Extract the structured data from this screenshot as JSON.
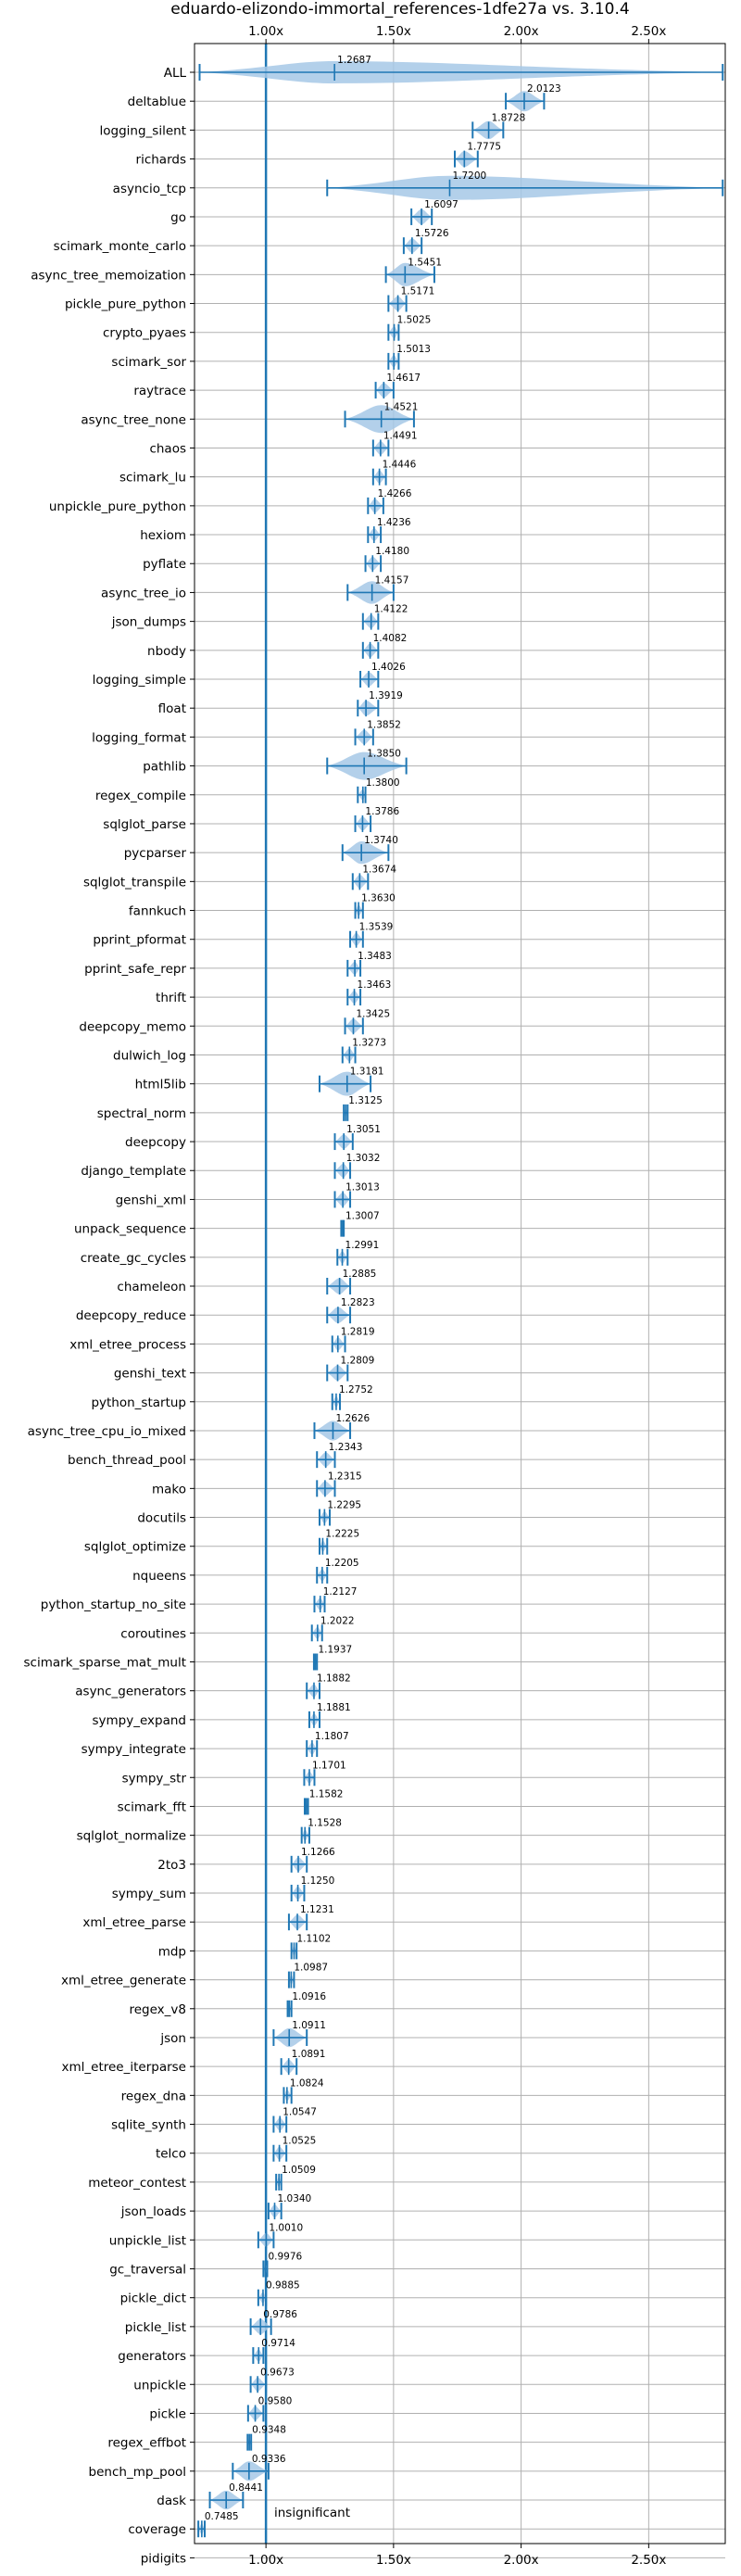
{
  "chart_data": {
    "type": "violin",
    "title": "eduardo-elizondo-immortal_references-1dfe27a vs. 3.10.4",
    "x_ticks": [
      "1.00x",
      "1.50x",
      "2.00x",
      "2.50x"
    ],
    "x_tick_values": [
      1.0,
      1.5,
      2.0,
      2.5
    ],
    "xlim": [
      0.72,
      2.8
    ],
    "grid": true,
    "reference_line": 1.0,
    "annotation": "insignificant",
    "colors": {
      "line": "#1f77b4",
      "violin": "#a6c8e6",
      "grid": "#b0b0b0"
    },
    "benchmarks": [
      {
        "name": "ALL",
        "label": "1.2687",
        "mean": 1.2687,
        "min": 0.74,
        "max": 2.79
      },
      {
        "name": "deltablue",
        "label": "2.0123",
        "mean": 2.0123,
        "min": 1.94,
        "max": 2.09
      },
      {
        "name": "logging_silent",
        "label": "1.8728",
        "mean": 1.8728,
        "min": 1.81,
        "max": 1.93
      },
      {
        "name": "richards",
        "label": "1.7775",
        "mean": 1.7775,
        "min": 1.74,
        "max": 1.83
      },
      {
        "name": "asyncio_tcp",
        "label": "1.7200",
        "mean": 1.72,
        "min": 1.24,
        "max": 2.79
      },
      {
        "name": "go",
        "label": "1.6097",
        "mean": 1.6097,
        "min": 1.57,
        "max": 1.65
      },
      {
        "name": "scimark_monte_carlo",
        "label": "1.5726",
        "mean": 1.5726,
        "min": 1.54,
        "max": 1.61
      },
      {
        "name": "async_tree_memoization",
        "label": "1.5451",
        "mean": 1.5451,
        "min": 1.47,
        "max": 1.66
      },
      {
        "name": "pickle_pure_python",
        "label": "1.5171",
        "mean": 1.5171,
        "min": 1.48,
        "max": 1.55
      },
      {
        "name": "crypto_pyaes",
        "label": "1.5025",
        "mean": 1.5025,
        "min": 1.48,
        "max": 1.52
      },
      {
        "name": "scimark_sor",
        "label": "1.5013",
        "mean": 1.5013,
        "min": 1.48,
        "max": 1.52
      },
      {
        "name": "raytrace",
        "label": "1.4617",
        "mean": 1.4617,
        "min": 1.43,
        "max": 1.5
      },
      {
        "name": "async_tree_none",
        "label": "1.4521",
        "mean": 1.4521,
        "min": 1.31,
        "max": 1.58
      },
      {
        "name": "chaos",
        "label": "1.4491",
        "mean": 1.4491,
        "min": 1.42,
        "max": 1.48
      },
      {
        "name": "scimark_lu",
        "label": "1.4446",
        "mean": 1.4446,
        "min": 1.42,
        "max": 1.47
      },
      {
        "name": "unpickle_pure_python",
        "label": "1.4266",
        "mean": 1.4266,
        "min": 1.4,
        "max": 1.46
      },
      {
        "name": "hexiom",
        "label": "1.4236",
        "mean": 1.4236,
        "min": 1.4,
        "max": 1.45
      },
      {
        "name": "pyflate",
        "label": "1.4180",
        "mean": 1.418,
        "min": 1.39,
        "max": 1.45
      },
      {
        "name": "async_tree_io",
        "label": "1.4157",
        "mean": 1.4157,
        "min": 1.32,
        "max": 1.5
      },
      {
        "name": "json_dumps",
        "label": "1.4122",
        "mean": 1.4122,
        "min": 1.38,
        "max": 1.44
      },
      {
        "name": "nbody",
        "label": "1.4082",
        "mean": 1.4082,
        "min": 1.38,
        "max": 1.44
      },
      {
        "name": "logging_simple",
        "label": "1.4026",
        "mean": 1.4026,
        "min": 1.37,
        "max": 1.44
      },
      {
        "name": "float",
        "label": "1.3919",
        "mean": 1.3919,
        "min": 1.36,
        "max": 1.44
      },
      {
        "name": "logging_format",
        "label": "1.3852",
        "mean": 1.3852,
        "min": 1.35,
        "max": 1.42
      },
      {
        "name": "pathlib",
        "label": "1.3850",
        "mean": 1.385,
        "min": 1.24,
        "max": 1.55
      },
      {
        "name": "regex_compile",
        "label": "1.3800",
        "mean": 1.38,
        "min": 1.36,
        "max": 1.39
      },
      {
        "name": "sqlglot_parse",
        "label": "1.3786",
        "mean": 1.3786,
        "min": 1.35,
        "max": 1.41
      },
      {
        "name": "pycparser",
        "label": "1.3740",
        "mean": 1.374,
        "min": 1.3,
        "max": 1.48
      },
      {
        "name": "sqlglot_transpile",
        "label": "1.3674",
        "mean": 1.3674,
        "min": 1.34,
        "max": 1.4
      },
      {
        "name": "fannkuch",
        "label": "1.3630",
        "mean": 1.363,
        "min": 1.35,
        "max": 1.38
      },
      {
        "name": "pprint_pformat",
        "label": "1.3539",
        "mean": 1.3539,
        "min": 1.33,
        "max": 1.38
      },
      {
        "name": "pprint_safe_repr",
        "label": "1.3483",
        "mean": 1.3483,
        "min": 1.32,
        "max": 1.37
      },
      {
        "name": "thrift",
        "label": "1.3463",
        "mean": 1.3463,
        "min": 1.32,
        "max": 1.37
      },
      {
        "name": "deepcopy_memo",
        "label": "1.3425",
        "mean": 1.3425,
        "min": 1.31,
        "max": 1.38
      },
      {
        "name": "dulwich_log",
        "label": "1.3273",
        "mean": 1.3273,
        "min": 1.3,
        "max": 1.35
      },
      {
        "name": "html5lib",
        "label": "1.3181",
        "mean": 1.3181,
        "min": 1.21,
        "max": 1.41
      },
      {
        "name": "spectral_norm",
        "label": "1.3125",
        "mean": 1.3125,
        "min": 1.305,
        "max": 1.32
      },
      {
        "name": "deepcopy",
        "label": "1.3051",
        "mean": 1.3051,
        "min": 1.27,
        "max": 1.34
      },
      {
        "name": "django_template",
        "label": "1.3032",
        "mean": 1.3032,
        "min": 1.27,
        "max": 1.33
      },
      {
        "name": "genshi_xml",
        "label": "1.3013",
        "mean": 1.3013,
        "min": 1.27,
        "max": 1.33
      },
      {
        "name": "unpack_sequence",
        "label": "1.3007",
        "mean": 1.3007,
        "min": 1.295,
        "max": 1.305
      },
      {
        "name": "create_gc_cycles",
        "label": "1.2991",
        "mean": 1.2991,
        "min": 1.28,
        "max": 1.32
      },
      {
        "name": "chameleon",
        "label": "1.2885",
        "mean": 1.2885,
        "min": 1.24,
        "max": 1.33
      },
      {
        "name": "deepcopy_reduce",
        "label": "1.2823",
        "mean": 1.2823,
        "min": 1.24,
        "max": 1.33
      },
      {
        "name": "xml_etree_process",
        "label": "1.2819",
        "mean": 1.2819,
        "min": 1.26,
        "max": 1.31
      },
      {
        "name": "genshi_text",
        "label": "1.2809",
        "mean": 1.2809,
        "min": 1.24,
        "max": 1.32
      },
      {
        "name": "python_startup",
        "label": "1.2752",
        "mean": 1.2752,
        "min": 1.26,
        "max": 1.29
      },
      {
        "name": "async_tree_cpu_io_mixed",
        "label": "1.2626",
        "mean": 1.2626,
        "min": 1.19,
        "max": 1.33
      },
      {
        "name": "bench_thread_pool",
        "label": "1.2343",
        "mean": 1.2343,
        "min": 1.2,
        "max": 1.27
      },
      {
        "name": "mako",
        "label": "1.2315",
        "mean": 1.2315,
        "min": 1.2,
        "max": 1.27
      },
      {
        "name": "docutils",
        "label": "1.2295",
        "mean": 1.2295,
        "min": 1.21,
        "max": 1.25
      },
      {
        "name": "sqlglot_optimize",
        "label": "1.2225",
        "mean": 1.2225,
        "min": 1.21,
        "max": 1.24
      },
      {
        "name": "nqueens",
        "label": "1.2205",
        "mean": 1.2205,
        "min": 1.2,
        "max": 1.24
      },
      {
        "name": "python_startup_no_site",
        "label": "1.2127",
        "mean": 1.2127,
        "min": 1.19,
        "max": 1.23
      },
      {
        "name": "coroutines",
        "label": "1.2022",
        "mean": 1.2022,
        "min": 1.18,
        "max": 1.22
      },
      {
        "name": "scimark_sparse_mat_mult",
        "label": "1.1937",
        "mean": 1.1937,
        "min": 1.188,
        "max": 1.2
      },
      {
        "name": "async_generators",
        "label": "1.1882",
        "mean": 1.1882,
        "min": 1.16,
        "max": 1.21
      },
      {
        "name": "sympy_expand",
        "label": "1.1881",
        "mean": 1.1881,
        "min": 1.17,
        "max": 1.21
      },
      {
        "name": "sympy_integrate",
        "label": "1.1807",
        "mean": 1.1807,
        "min": 1.16,
        "max": 1.2
      },
      {
        "name": "sympy_str",
        "label": "1.1701",
        "mean": 1.1701,
        "min": 1.15,
        "max": 1.19
      },
      {
        "name": "scimark_fft",
        "label": "1.1582",
        "mean": 1.1582,
        "min": 1.152,
        "max": 1.165
      },
      {
        "name": "sqlglot_normalize",
        "label": "1.1528",
        "mean": 1.1528,
        "min": 1.14,
        "max": 1.17
      },
      {
        "name": "2to3",
        "label": "1.1266",
        "mean": 1.1266,
        "min": 1.1,
        "max": 1.16
      },
      {
        "name": "sympy_sum",
        "label": "1.1250",
        "mean": 1.125,
        "min": 1.1,
        "max": 1.15
      },
      {
        "name": "xml_etree_parse",
        "label": "1.1231",
        "mean": 1.1231,
        "min": 1.09,
        "max": 1.16
      },
      {
        "name": "mdp",
        "label": "1.1102",
        "mean": 1.1102,
        "min": 1.1,
        "max": 1.12
      },
      {
        "name": "xml_etree_generate",
        "label": "1.0987",
        "mean": 1.0987,
        "min": 1.09,
        "max": 1.11
      },
      {
        "name": "regex_v8",
        "label": "1.0916",
        "mean": 1.0916,
        "min": 1.085,
        "max": 1.1
      },
      {
        "name": "json",
        "label": "1.0911",
        "mean": 1.0911,
        "min": 1.03,
        "max": 1.16
      },
      {
        "name": "xml_etree_iterparse",
        "label": "1.0891",
        "mean": 1.0891,
        "min": 1.06,
        "max": 1.12
      },
      {
        "name": "regex_dna",
        "label": "1.0824",
        "mean": 1.0824,
        "min": 1.07,
        "max": 1.1
      },
      {
        "name": "sqlite_synth",
        "label": "1.0547",
        "mean": 1.0547,
        "min": 1.03,
        "max": 1.08
      },
      {
        "name": "telco",
        "label": "1.0525",
        "mean": 1.0525,
        "min": 1.03,
        "max": 1.08
      },
      {
        "name": "meteor_contest",
        "label": "1.0509",
        "mean": 1.0509,
        "min": 1.04,
        "max": 1.06
      },
      {
        "name": "json_loads",
        "label": "1.0340",
        "mean": 1.034,
        "min": 1.01,
        "max": 1.06
      },
      {
        "name": "unpickle_list",
        "label": "1.0010",
        "mean": 1.001,
        "min": 0.97,
        "max": 1.03
      },
      {
        "name": "gc_traversal",
        "label": "0.9976",
        "mean": 0.9976,
        "min": 0.99,
        "max": 1.005
      },
      {
        "name": "pickle_dict",
        "label": "0.9885",
        "mean": 0.9885,
        "min": 0.97,
        "max": 1.0
      },
      {
        "name": "pickle_list",
        "label": "0.9786",
        "mean": 0.9786,
        "min": 0.94,
        "max": 1.02
      },
      {
        "name": "generators",
        "label": "0.9714",
        "mean": 0.9714,
        "min": 0.95,
        "max": 0.99
      },
      {
        "name": "unpickle",
        "label": "0.9673",
        "mean": 0.9673,
        "min": 0.94,
        "max": 1.0
      },
      {
        "name": "pickle",
        "label": "0.9580",
        "mean": 0.958,
        "min": 0.93,
        "max": 0.99
      },
      {
        "name": "regex_effbot",
        "label": "0.9348",
        "mean": 0.9348,
        "min": 0.928,
        "max": 0.942
      },
      {
        "name": "bench_mp_pool",
        "label": "0.9336",
        "mean": 0.9336,
        "min": 0.87,
        "max": 1.01
      },
      {
        "name": "dask",
        "label": "0.8441",
        "mean": 0.8441,
        "min": 0.78,
        "max": 0.91
      },
      {
        "name": "coverage",
        "label": "0.7485",
        "mean": 0.7485,
        "min": 0.735,
        "max": 0.76
      },
      {
        "name": "pidigits",
        "label": "",
        "mean": null,
        "min": null,
        "max": null
      }
    ]
  }
}
